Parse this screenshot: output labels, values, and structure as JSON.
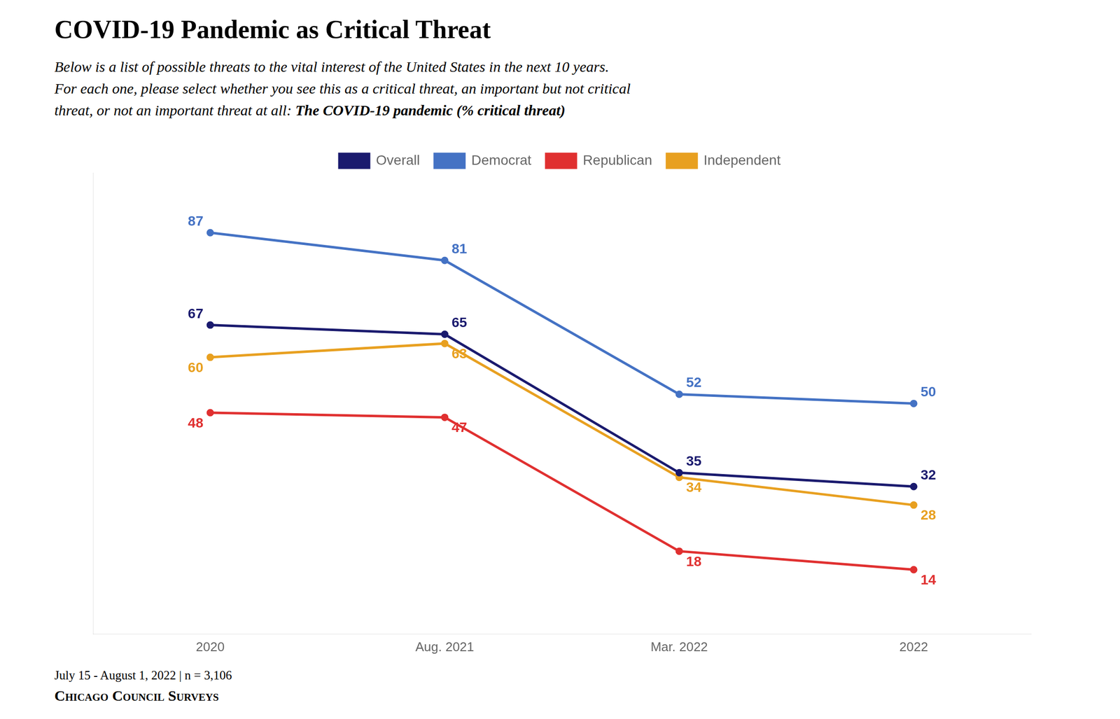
{
  "chart_data": {
    "type": "line",
    "title": "COVID-19 Pandemic as Critical Threat",
    "subtitle": [
      "Below is a list of possible threats to the vital interest of the United States in the next 10 years.",
      "For each one, please select whether you see this as a critical threat, an important but not critical",
      "threat, or not an important threat at all: ",
      "The COVID-19 pandemic (% critical threat)"
    ],
    "annotations": [
      "July 15 - August 1, 2022 | n = 3,106",
      "Chicago Council Surveys"
    ],
    "categories": [
      "2020",
      "Aug. 2021",
      "Mar. 2022",
      "2022"
    ],
    "series": [
      {
        "name": "Overall",
        "color": "#1a1a6e",
        "values": [
          67,
          65,
          35,
          32
        ]
      },
      {
        "name": "Democrat",
        "color": "#4472c4",
        "values": [
          87,
          81,
          52,
          50
        ]
      },
      {
        "name": "Republican",
        "color": "#e03030",
        "values": [
          48,
          47,
          18,
          14
        ]
      },
      {
        "name": "Independent",
        "color": "#e8a020",
        "values": [
          60,
          63,
          34,
          28
        ]
      }
    ],
    "ylim": [
      0,
      100
    ],
    "grid": false,
    "legend": "top",
    "data_labels": true,
    "tick_labels": "x"
  }
}
